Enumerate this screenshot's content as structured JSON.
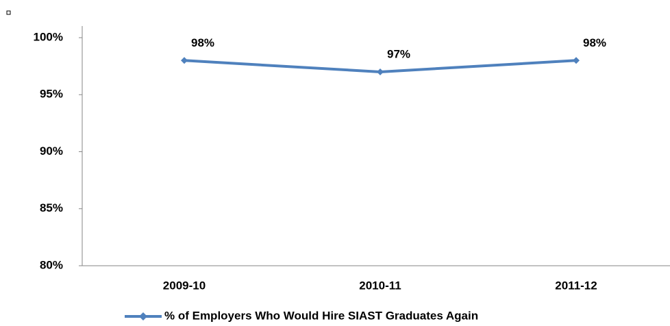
{
  "chart_data": {
    "type": "line",
    "categories": [
      "2009-10",
      "2010-11",
      "2011-12"
    ],
    "series": [
      {
        "name": "% of Employers Who Would Hire SIAST Graduates Again",
        "color": "#4f81bd",
        "values": [
          98,
          97,
          98
        ],
        "value_labels": [
          "98%",
          "97%",
          "98%"
        ]
      }
    ],
    "ylim": [
      80,
      100
    ],
    "yticks": [
      {
        "value": 80,
        "label": "80%"
      },
      {
        "value": 85,
        "label": "85%"
      },
      {
        "value": 90,
        "label": "90%"
      },
      {
        "value": 95,
        "label": "95%"
      },
      {
        "value": 100,
        "label": "100%"
      }
    ],
    "grid": false,
    "legend": "bottom"
  }
}
